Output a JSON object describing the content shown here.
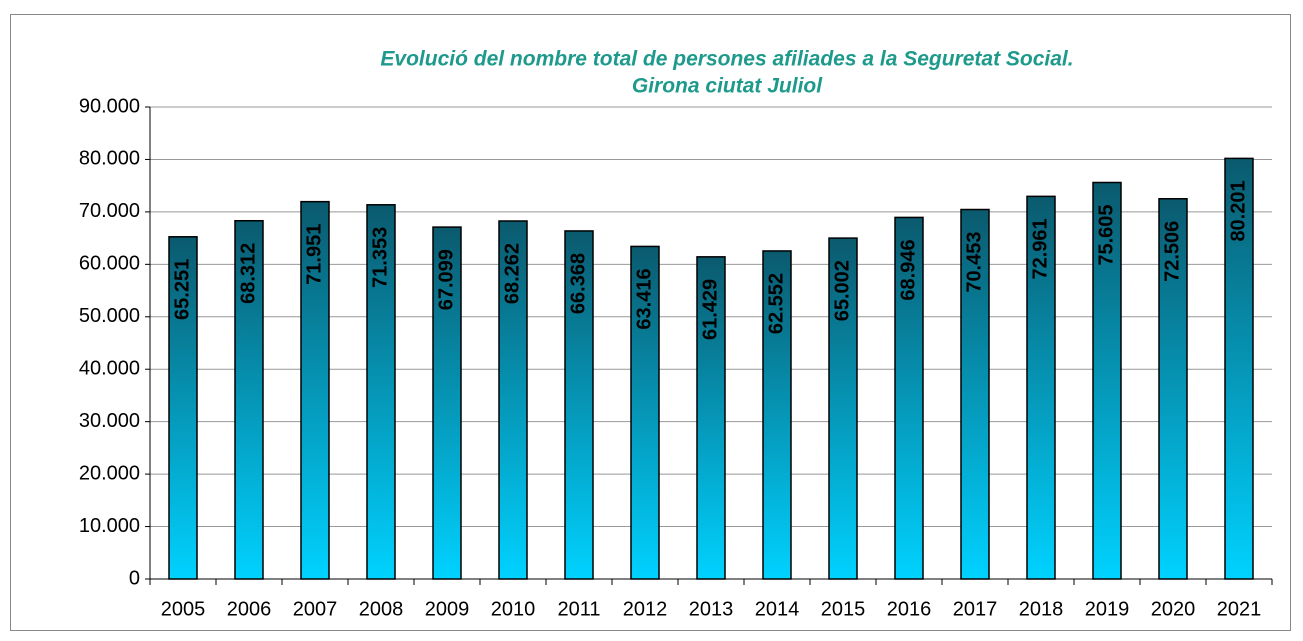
{
  "chart_data": {
    "type": "bar",
    "title": [
      "Evolució del nombre total de persones afiliades a la Seguretat Social.",
      "Girona ciutat Juliol"
    ],
    "categories": [
      "2005",
      "2006",
      "2007",
      "2008",
      "2009",
      "2010",
      "2011",
      "2012",
      "2013",
      "2014",
      "2015",
      "2016",
      "2017",
      "2018",
      "2019",
      "2020",
      "2021"
    ],
    "values": [
      65251,
      68312,
      71951,
      71353,
      67099,
      68262,
      66368,
      63416,
      61429,
      62552,
      65002,
      68946,
      70453,
      72961,
      75605,
      72506,
      80201
    ],
    "value_labels": [
      "65.251",
      "68.312",
      "71.951",
      "71.353",
      "67.099",
      "68.262",
      "66.368",
      "63.416",
      "61.429",
      "62.552",
      "65.002",
      "68.946",
      "70.453",
      "72.961",
      "75.605",
      "72.506",
      "80.201"
    ],
    "color": [
      "#0b5a6e",
      "#00d2ff"
    ],
    "ylim": [
      0,
      90000
    ],
    "yticks": [
      0,
      {
        "value": 10000,
        "label": "10.000"
      },
      {
        "value": 20000,
        "label": "20.000"
      },
      {
        "value": 30000,
        "label": "30.000"
      },
      {
        "value": 40000,
        "label": "40.000"
      },
      {
        "value": 50000,
        "label": "50.000"
      },
      {
        "value": 60000,
        "label": "60.000"
      },
      {
        "value": 70000,
        "label": "70.000"
      },
      {
        "value": 80000,
        "label": "80.000"
      },
      {
        "value": 90000,
        "label": "90.000"
      }
    ],
    "grid": true
  }
}
